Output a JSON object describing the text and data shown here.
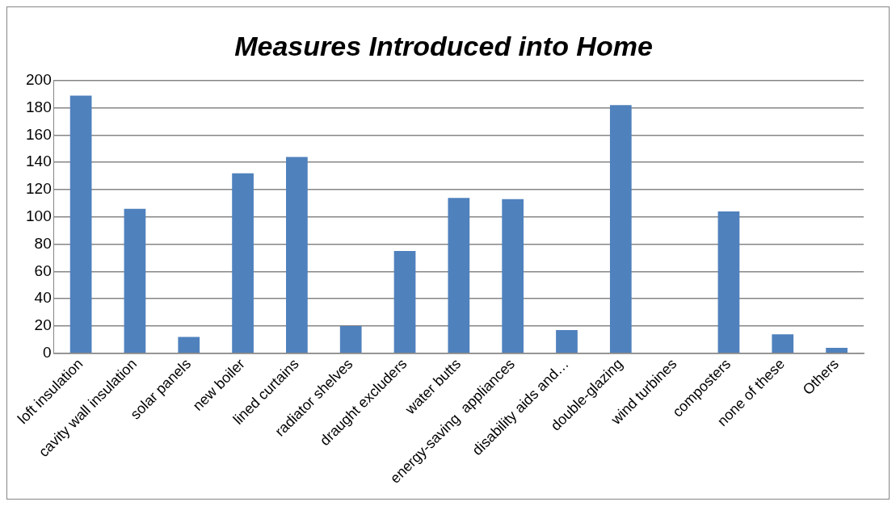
{
  "chart_data": {
    "type": "bar",
    "title": "Measures Introduced into Home",
    "categories": [
      "loft insulation",
      "cavity wall insulation",
      "solar panels",
      "new boiler",
      "lined curtains",
      "radiator shelves",
      "draught excluders",
      "water butts",
      "energy-saving  appliances",
      "disability aids and…",
      "double-glazing",
      "wind turbines",
      "composters",
      "none of these",
      "Others"
    ],
    "values": [
      189,
      106,
      12,
      132,
      144,
      20,
      75,
      114,
      113,
      17,
      182,
      0,
      104,
      14,
      4
    ],
    "color": "#4f81bd",
    "ylim": [
      0,
      200
    ],
    "yticks": [
      0,
      20,
      40,
      60,
      80,
      100,
      120,
      140,
      160,
      180,
      200
    ],
    "grid": "y",
    "legend": false
  }
}
